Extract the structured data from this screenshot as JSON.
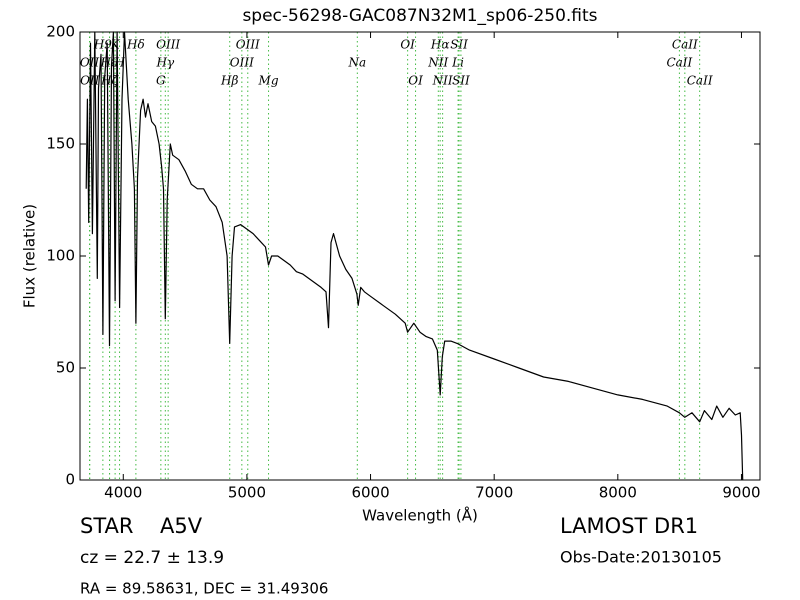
{
  "chart_data": {
    "type": "line",
    "title": "spec-56298-GAC087N32M1_sp06-250.fits",
    "xlabel": "Wavelength (Å)",
    "ylabel": "Flux (relative)",
    "xlim": [
      3650,
      9150
    ],
    "ylim": [
      0,
      200
    ],
    "xticks": [
      4000,
      5000,
      6000,
      7000,
      8000,
      9000
    ],
    "yticks": [
      0,
      50,
      100,
      150,
      200
    ],
    "x": [
      3700,
      3710,
      3720,
      3735,
      3750,
      3770,
      3790,
      3800,
      3820,
      3835,
      3850,
      3870,
      3889,
      3905,
      3920,
      3934,
      3950,
      3970,
      3990,
      4010,
      4040,
      4070,
      4090,
      4102,
      4115,
      4140,
      4160,
      4180,
      4200,
      4230,
      4260,
      4290,
      4310,
      4325,
      4340,
      4355,
      4380,
      4400,
      4450,
      4500,
      4550,
      4600,
      4650,
      4700,
      4750,
      4800,
      4840,
      4861,
      4880,
      4900,
      4950,
      5000,
      5050,
      5100,
      5150,
      5175,
      5200,
      5250,
      5300,
      5350,
      5400,
      5450,
      5500,
      5550,
      5600,
      5640,
      5660,
      5680,
      5700,
      5750,
      5800,
      5850,
      5890,
      5900,
      5920,
      5950,
      6000,
      6100,
      6200,
      6280,
      6300,
      6350,
      6400,
      6450,
      6500,
      6540,
      6563,
      6580,
      6600,
      6650,
      6700,
      6800,
      7000,
      7200,
      7400,
      7600,
      7800,
      8000,
      8200,
      8400,
      8498,
      8542,
      8600,
      8662,
      8700,
      8760,
      8800,
      8850,
      8900,
      8950,
      8990,
      9000,
      9010
    ],
    "series": [
      {
        "color": "#000000",
        "values": [
          130,
          170,
          115,
          195,
          110,
          200,
          90,
          175,
          190,
          65,
          180,
          195,
          60,
          185,
          200,
          80,
          200,
          77,
          170,
          200,
          170,
          150,
          130,
          70,
          135,
          165,
          170,
          162,
          168,
          160,
          158,
          150,
          140,
          130,
          72,
          125,
          150,
          145,
          143,
          138,
          132,
          130,
          130,
          125,
          122,
          115,
          100,
          61,
          100,
          113,
          114,
          112,
          110,
          107,
          104,
          96,
          100,
          100,
          98,
          96,
          93,
          92,
          90,
          88,
          86,
          84,
          68,
          106,
          110,
          100,
          94,
          90,
          83,
          78,
          86,
          84,
          82,
          78,
          74,
          70,
          66,
          70,
          66,
          64,
          63,
          58,
          38,
          55,
          62,
          62,
          61,
          58,
          54,
          50,
          46,
          44,
          41,
          38,
          36,
          33,
          30,
          28,
          30,
          26,
          31,
          27,
          33,
          28,
          32,
          29,
          30,
          20,
          0
        ]
      }
    ],
    "line_color": "#44bb44",
    "line_rows": [
      [
        {
          "label": "H9",
          "x": 3835
        },
        {
          "label": "K",
          "x": 3934
        },
        {
          "label": "Hδ",
          "x": 4102
        },
        {
          "label": "OIII",
          "x": 4363
        },
        {
          "label": "OIII",
          "x": 5007
        },
        {
          "label": "OI",
          "x": 6300
        },
        {
          "label": "Hα",
          "x": 6563
        },
        {
          "label": "SII",
          "x": 6716
        },
        {
          "label": "CaII",
          "x": 8542
        }
      ],
      [
        {
          "label": "OII",
          "x": 3727
        },
        {
          "label": "H8",
          "x": 3889
        },
        {
          "label": "H",
          "x": 3970
        },
        {
          "label": "Hγ",
          "x": 4340
        },
        {
          "label": "OIII",
          "x": 4959
        },
        {
          "label": "Na",
          "x": 5893
        },
        {
          "label": "NII",
          "x": 6548
        },
        {
          "label": "Li",
          "x": 6708
        },
        {
          "label": "CaII",
          "x": 8498
        }
      ],
      [
        {
          "label": "OII",
          "x": 3729
        },
        {
          "label": "Hζ",
          "x": 3889
        },
        {
          "label": "G",
          "x": 4304
        },
        {
          "label": "Hβ",
          "x": 4861
        },
        {
          "label": "Mg",
          "x": 5175
        },
        {
          "label": "OI",
          "x": 6364
        },
        {
          "label": "NII",
          "x": 6583
        },
        {
          "label": "SII",
          "x": 6731
        },
        {
          "label": "CaII",
          "x": 8662
        }
      ]
    ],
    "info": {
      "object": "STAR",
      "subclass": "A5V",
      "cz": "cz = 22.7 ± 13.9",
      "coords": "RA = 89.58631, DEC = 31.49306",
      "survey": "LAMOST DR1",
      "obs_date": "Obs-Date:20130105"
    }
  }
}
